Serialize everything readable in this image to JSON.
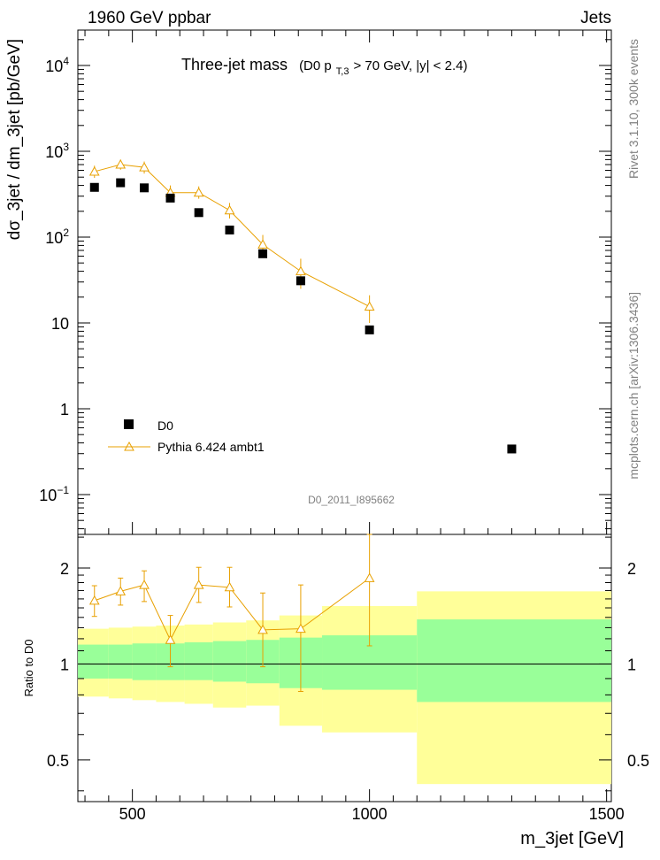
{
  "header": {
    "left": "1960 GeV ppbar",
    "right": "Jets"
  },
  "title": {
    "main": "Three-jet mass",
    "sub_prefix": "(D0 p",
    "sub_subscript": "T,3",
    "sub_suffix": " > 70 GeV, |y| < 2.4)"
  },
  "side_labels": {
    "rivet": "Rivet 3.1.10,  300k events",
    "mcplots": "mcplots.cern.ch [arXiv:1306.3436]"
  },
  "analysis_id": "D0_2011_I895662",
  "legend": {
    "data_label": "D0",
    "mc_label": "Pythia 6.424 ambt1"
  },
  "axes": {
    "ylabel_top": "dσ_3jet / dm_3jet [pb/GeV]",
    "ylabel_bottom": "Ratio to D0",
    "xlabel": "m_3jet [GeV]",
    "x_ticks": [
      "500",
      "1000",
      "1500"
    ],
    "y_ticks_top": [
      {
        "base": "10",
        "exp": "−1",
        "value": 0.1
      },
      {
        "base": "1",
        "exp": "",
        "value": 1
      },
      {
        "base": "10",
        "exp": "",
        "value": 10
      },
      {
        "base": "10",
        "exp": "2",
        "value": 100
      },
      {
        "base": "10",
        "exp": "3",
        "value": 1000
      },
      {
        "base": "10",
        "exp": "4",
        "value": 10000
      }
    ],
    "y_ticks_bottom": [
      "0.5",
      "1",
      "2"
    ]
  },
  "colors": {
    "mc": "#e8a000",
    "band_inner": "#99ff99",
    "band_outer": "#ffff99",
    "data": "#000000"
  },
  "chart_data": {
    "type": "scatter",
    "xlim": [
      385,
      1510
    ],
    "ylim_top": [
      0.04,
      25000
    ],
    "ylim_bottom": [
      0.37,
      2.55
    ],
    "log_y_top": true,
    "log_y_bottom": true,
    "data_points": [
      {
        "x": 420,
        "y": 380,
        "xlo": 400,
        "xhi": 450
      },
      {
        "x": 475,
        "y": 430,
        "xlo": 450,
        "xhi": 500
      },
      {
        "x": 525,
        "y": 375,
        "xlo": 500,
        "xhi": 550
      },
      {
        "x": 580,
        "y": 285,
        "xlo": 550,
        "xhi": 610
      },
      {
        "x": 640,
        "y": 193,
        "xlo": 610,
        "xhi": 670
      },
      {
        "x": 705,
        "y": 121,
        "xlo": 670,
        "xhi": 740
      },
      {
        "x": 775,
        "y": 64,
        "xlo": 740,
        "xhi": 810
      },
      {
        "x": 855,
        "y": 31,
        "xlo": 810,
        "xhi": 900
      },
      {
        "x": 1000,
        "y": 8.3,
        "xlo": 900,
        "xhi": 1100
      },
      {
        "x": 1300,
        "y": 0.34,
        "xlo": 1100,
        "xhi": 1500
      }
    ],
    "mc_points": [
      {
        "x": 420,
        "y": 580,
        "ylo": 490,
        "yhi": 680
      },
      {
        "x": 475,
        "y": 700,
        "ylo": 610,
        "yhi": 800
      },
      {
        "x": 525,
        "y": 650,
        "ylo": 550,
        "yhi": 760
      },
      {
        "x": 580,
        "y": 330,
        "ylo": 270,
        "yhi": 400
      },
      {
        "x": 640,
        "y": 330,
        "ylo": 280,
        "yhi": 390
      },
      {
        "x": 705,
        "y": 205,
        "ylo": 165,
        "yhi": 250
      },
      {
        "x": 775,
        "y": 82,
        "ylo": 62,
        "yhi": 106
      },
      {
        "x": 855,
        "y": 40,
        "ylo": 25,
        "yhi": 56
      },
      {
        "x": 1000,
        "y": 15.5,
        "ylo": 10,
        "yhi": 21
      }
    ],
    "ratio_points": [
      {
        "x": 420,
        "y": 1.58,
        "ylo": 1.41,
        "yhi": 1.76
      },
      {
        "x": 475,
        "y": 1.69,
        "ylo": 1.53,
        "yhi": 1.86
      },
      {
        "x": 525,
        "y": 1.77,
        "ylo": 1.57,
        "yhi": 1.96
      },
      {
        "x": 580,
        "y": 1.19,
        "ylo": 0.98,
        "yhi": 1.42
      },
      {
        "x": 640,
        "y": 1.77,
        "ylo": 1.56,
        "yhi": 2.01
      },
      {
        "x": 705,
        "y": 1.74,
        "ylo": 1.51,
        "yhi": 2.01
      },
      {
        "x": 775,
        "y": 1.28,
        "ylo": 0.98,
        "yhi": 1.67
      },
      {
        "x": 855,
        "y": 1.29,
        "ylo": 0.82,
        "yhi": 1.77
      },
      {
        "x": 1000,
        "y": 1.86,
        "ylo": 1.14,
        "yhi": 2.55
      }
    ],
    "bands": [
      {
        "xlo": 385,
        "xhi": 450,
        "inner_lo": 0.9,
        "inner_hi": 1.15,
        "outer_lo": 0.79,
        "outer_hi": 1.29
      },
      {
        "xlo": 450,
        "xhi": 500,
        "inner_lo": 0.9,
        "inner_hi": 1.15,
        "outer_lo": 0.78,
        "outer_hi": 1.3
      },
      {
        "xlo": 500,
        "xhi": 550,
        "inner_lo": 0.89,
        "inner_hi": 1.16,
        "outer_lo": 0.77,
        "outer_hi": 1.31
      },
      {
        "xlo": 550,
        "xhi": 610,
        "inner_lo": 0.89,
        "inner_hi": 1.16,
        "outer_lo": 0.76,
        "outer_hi": 1.32
      },
      {
        "xlo": 610,
        "xhi": 670,
        "inner_lo": 0.89,
        "inner_hi": 1.17,
        "outer_lo": 0.75,
        "outer_hi": 1.33
      },
      {
        "xlo": 670,
        "xhi": 740,
        "inner_lo": 0.88,
        "inner_hi": 1.18,
        "outer_lo": 0.73,
        "outer_hi": 1.35
      },
      {
        "xlo": 740,
        "xhi": 810,
        "inner_lo": 0.87,
        "inner_hi": 1.19,
        "outer_lo": 0.74,
        "outer_hi": 1.37
      },
      {
        "xlo": 810,
        "xhi": 900,
        "inner_lo": 0.84,
        "inner_hi": 1.21,
        "outer_lo": 0.64,
        "outer_hi": 1.42
      },
      {
        "xlo": 900,
        "xhi": 1100,
        "inner_lo": 0.83,
        "inner_hi": 1.23,
        "outer_lo": 0.61,
        "outer_hi": 1.52
      },
      {
        "xlo": 1100,
        "xhi": 1510,
        "inner_lo": 0.76,
        "inner_hi": 1.38,
        "outer_lo": 0.42,
        "outer_hi": 1.69
      }
    ]
  }
}
